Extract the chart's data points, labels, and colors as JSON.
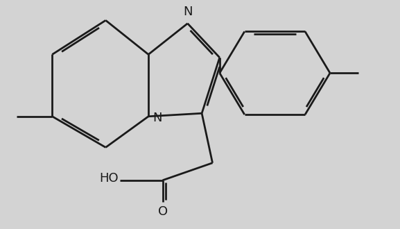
{
  "background_color": "#d3d3d3",
  "line_color": "#1a1a1a",
  "line_width": 2.0,
  "dbo": 0.08,
  "figsize": [
    5.77,
    3.3
  ],
  "dpi": 100,
  "xlim": [
    0,
    10.5
  ],
  "ylim": [
    -0.5,
    6.0
  ]
}
